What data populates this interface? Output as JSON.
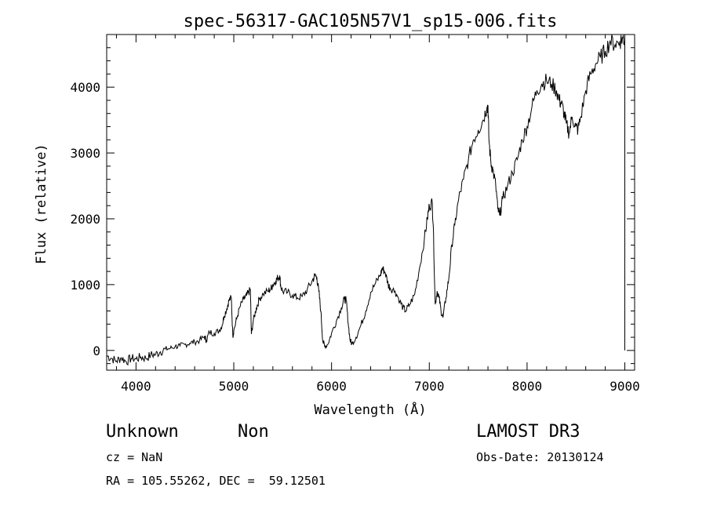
{
  "chart_data": {
    "type": "line",
    "title": "spec-56317-GAC105N57V1_sp15-006.fits",
    "xlabel": "Wavelength (Å)",
    "ylabel": "Flux (relative)",
    "xlim": [
      3700,
      9100
    ],
    "ylim": [
      -300,
      4800
    ],
    "x_ticks": [
      4000,
      5000,
      6000,
      7000,
      8000,
      9000
    ],
    "y_ticks": [
      0,
      1000,
      2000,
      3000,
      4000
    ],
    "series": [
      {
        "name": "spectrum",
        "points": [
          [
            3700,
            -80
          ],
          [
            3750,
            -120
          ],
          [
            3800,
            -160
          ],
          [
            3850,
            -110
          ],
          [
            3900,
            -170
          ],
          [
            3950,
            -120
          ],
          [
            4000,
            -130
          ],
          [
            4050,
            -100
          ],
          [
            4100,
            -120
          ],
          [
            4150,
            -70
          ],
          [
            4200,
            -60
          ],
          [
            4250,
            -20
          ],
          [
            4300,
            20
          ],
          [
            4350,
            30
          ],
          [
            4400,
            60
          ],
          [
            4450,
            70
          ],
          [
            4500,
            90
          ],
          [
            4550,
            110
          ],
          [
            4600,
            130
          ],
          [
            4650,
            150
          ],
          [
            4700,
            210
          ],
          [
            4720,
            150
          ],
          [
            4750,
            280
          ],
          [
            4800,
            260
          ],
          [
            4850,
            300
          ],
          [
            4880,
            380
          ],
          [
            4900,
            520
          ],
          [
            4930,
            640
          ],
          [
            4950,
            760
          ],
          [
            4975,
            800
          ],
          [
            4990,
            220
          ],
          [
            5000,
            300
          ],
          [
            5030,
            480
          ],
          [
            5060,
            650
          ],
          [
            5100,
            780
          ],
          [
            5130,
            830
          ],
          [
            5150,
            880
          ],
          [
            5170,
            920
          ],
          [
            5180,
            250
          ],
          [
            5200,
            450
          ],
          [
            5230,
            640
          ],
          [
            5260,
            780
          ],
          [
            5300,
            860
          ],
          [
            5350,
            900
          ],
          [
            5380,
            940
          ],
          [
            5400,
            1000
          ],
          [
            5430,
            1060
          ],
          [
            5450,
            1100
          ],
          [
            5470,
            1140
          ],
          [
            5480,
            980
          ],
          [
            5500,
            900
          ],
          [
            5550,
            880
          ],
          [
            5600,
            840
          ],
          [
            5650,
            800
          ],
          [
            5700,
            820
          ],
          [
            5750,
            920
          ],
          [
            5800,
            1050
          ],
          [
            5830,
            1140
          ],
          [
            5850,
            1100
          ],
          [
            5870,
            900
          ],
          [
            5890,
            600
          ],
          [
            5910,
            150
          ],
          [
            5930,
            60
          ],
          [
            5960,
            90
          ],
          [
            6000,
            260
          ],
          [
            6050,
            450
          ],
          [
            6100,
            650
          ],
          [
            6130,
            780
          ],
          [
            6150,
            760
          ],
          [
            6170,
            420
          ],
          [
            6190,
            150
          ],
          [
            6210,
            100
          ],
          [
            6250,
            200
          ],
          [
            6300,
            380
          ],
          [
            6350,
            600
          ],
          [
            6400,
            880
          ],
          [
            6450,
            1020
          ],
          [
            6500,
            1150
          ],
          [
            6520,
            1250
          ],
          [
            6550,
            1180
          ],
          [
            6580,
            1000
          ],
          [
            6600,
            950
          ],
          [
            6650,
            900
          ],
          [
            6700,
            750
          ],
          [
            6730,
            650
          ],
          [
            6760,
            600
          ],
          [
            6800,
            700
          ],
          [
            6850,
            850
          ],
          [
            6900,
            1250
          ],
          [
            6950,
            1700
          ],
          [
            6980,
            2000
          ],
          [
            7000,
            2200
          ],
          [
            7030,
            2250
          ],
          [
            7040,
            1900
          ],
          [
            7060,
            700
          ],
          [
            7080,
            900
          ],
          [
            7100,
            800
          ],
          [
            7120,
            600
          ],
          [
            7140,
            500
          ],
          [
            7170,
            800
          ],
          [
            7200,
            1100
          ],
          [
            7230,
            1600
          ],
          [
            7260,
            1900
          ],
          [
            7300,
            2300
          ],
          [
            7350,
            2600
          ],
          [
            7400,
            2900
          ],
          [
            7450,
            3200
          ],
          [
            7500,
            3350
          ],
          [
            7550,
            3500
          ],
          [
            7590,
            3700
          ],
          [
            7600,
            3720
          ],
          [
            7610,
            3200
          ],
          [
            7630,
            2850
          ],
          [
            7650,
            2750
          ],
          [
            7680,
            2500
          ],
          [
            7700,
            2150
          ],
          [
            7720,
            2050
          ],
          [
            7750,
            2300
          ],
          [
            7800,
            2500
          ],
          [
            7850,
            2700
          ],
          [
            7900,
            2900
          ],
          [
            7950,
            3200
          ],
          [
            8000,
            3400
          ],
          [
            8050,
            3700
          ],
          [
            8100,
            3950
          ],
          [
            8150,
            4050
          ],
          [
            8200,
            4100
          ],
          [
            8250,
            4050
          ],
          [
            8300,
            3950
          ],
          [
            8330,
            3800
          ],
          [
            8350,
            3750
          ],
          [
            8380,
            3600
          ],
          [
            8400,
            3450
          ],
          [
            8430,
            3300
          ],
          [
            8460,
            3550
          ],
          [
            8500,
            3400
          ],
          [
            8520,
            3350
          ],
          [
            8550,
            3550
          ],
          [
            8600,
            3950
          ],
          [
            8650,
            4200
          ],
          [
            8700,
            4350
          ],
          [
            8750,
            4450
          ],
          [
            8800,
            4550
          ],
          [
            8850,
            4700
          ],
          [
            8900,
            4650
          ],
          [
            8950,
            4700
          ],
          [
            8980,
            4750
          ],
          [
            9000,
            4700
          ]
        ]
      }
    ]
  },
  "info": {
    "object_class": "Unknown",
    "subclass": "Non",
    "survey": "LAMOST DR3",
    "redshift": "cz = NaN",
    "obs_date": "Obs-Date: 20130124",
    "coords": "RA = 105.55262, DEC =  59.12501"
  }
}
